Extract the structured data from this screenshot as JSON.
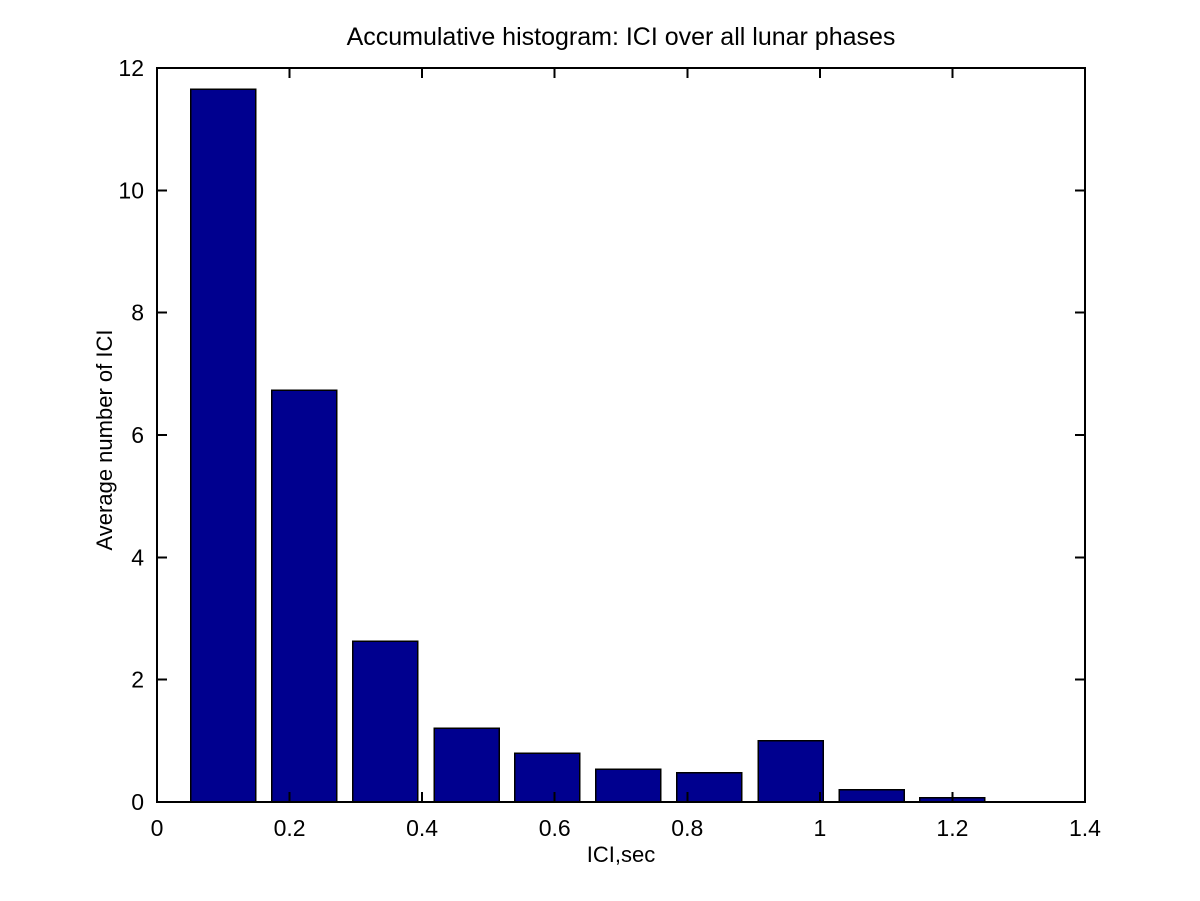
{
  "chart_data": {
    "type": "bar",
    "title": "Accumulative histogram: ICI over all lunar phases",
    "xlabel": "ICI,sec",
    "ylabel": "Average number of ICI",
    "xlim": [
      0,
      1.4
    ],
    "ylim": [
      0,
      12
    ],
    "x_ticks": [
      0,
      0.2,
      0.4,
      0.6,
      0.8,
      1,
      1.2,
      1.4
    ],
    "x_tick_labels": [
      "0",
      "0.2",
      "0.4",
      "0.6",
      "0.8",
      "1",
      "1.2",
      "1.4"
    ],
    "y_ticks": [
      0,
      2,
      4,
      6,
      8,
      10,
      12
    ],
    "y_tick_labels": [
      "0",
      "2",
      "4",
      "6",
      "8",
      "10",
      "12"
    ],
    "bin_centers": [
      0.1,
      0.222,
      0.344,
      0.467,
      0.589,
      0.711,
      0.833,
      0.956,
      1.078,
      1.2
    ],
    "values": [
      11.65,
      6.73,
      2.63,
      1.21,
      0.8,
      0.54,
      0.48,
      1.0,
      0.2,
      0.07
    ],
    "bar_width": 0.098,
    "bar_fill_color": "#00008F",
    "bar_edge_color": "#000000",
    "axis_color": "#000000",
    "background_color": "#ffffff",
    "grid": false,
    "tick_direction": "in",
    "box": true
  }
}
